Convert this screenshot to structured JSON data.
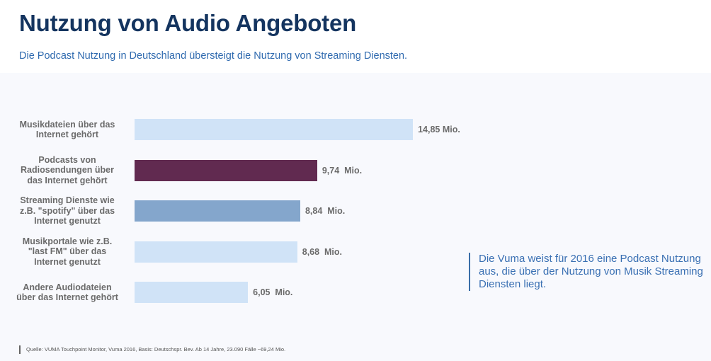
{
  "slide": {
    "title": "Nutzung von Audio Angeboten",
    "subtitle": "Die Podcast Nutzung in Deutschland übersteigt die Nutzung von Streaming Diensten.",
    "note": "Die Vuma weist für 2016 eine Podcast Nutzung  aus, die über der Nutzung von Musik Streaming Diensten liegt.",
    "source": "Quelle: VUMA Touchpoint Monitor, Vuma 2016, Basis: Deutschspr. Bev. Ab 14 Jahre, 23.090 Fälle ~69,24 Mio."
  },
  "chart_data": {
    "type": "bar",
    "orientation": "horizontal",
    "title": "Nutzung von Audio Angeboten",
    "xlabel": "",
    "ylabel": "",
    "unit": "Mio.",
    "grid": false,
    "xlim": [
      0,
      15
    ],
    "categories": [
      "Musikdateien über das Internet gehört",
      "Podcasts von Radiosendungen über das Internet gehört",
      "Streaming Dienste wie z.B. \"spotify\" über das Internet genutzt",
      "Musikportale wie z.B. \"last FM\" über das Internet genutzt",
      "Andere Audiodateien über das Internet gehört"
    ],
    "values": [
      14.85,
      9.74,
      8.84,
      8.68,
      6.05
    ],
    "value_labels": [
      "14,85 Mio.",
      "9,74  Mio.",
      "8,84  Mio.",
      "8,68  Mio.",
      "6,05  Mio."
    ],
    "colors": [
      "#d0e3f7",
      "#612a50",
      "#84a6cc",
      "#d0e3f7",
      "#d0e3f7"
    ]
  }
}
